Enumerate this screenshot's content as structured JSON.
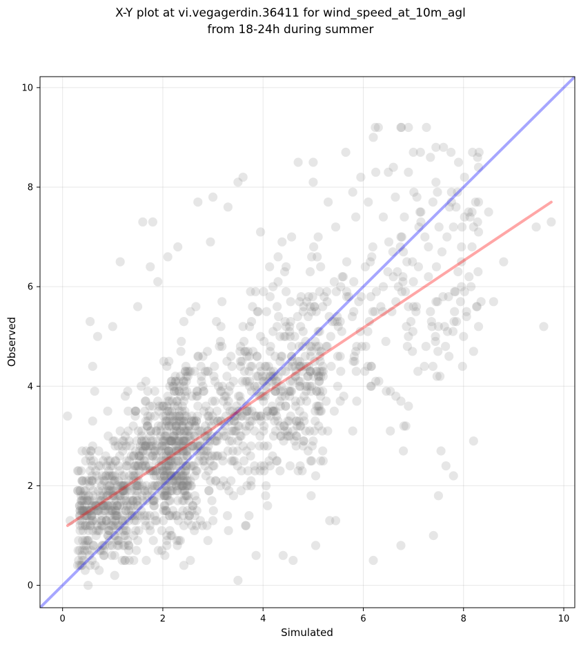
{
  "chart_data": {
    "type": "scatter",
    "title_lines": [
      "X-Y plot at vi.vegagerdin.36411 for wind_speed_at_10m_agl",
      "from 18-24h during summer"
    ],
    "xlabel": "Simulated",
    "ylabel": "Observed",
    "xlim": [
      -0.45,
      10.22
    ],
    "ylim": [
      -0.45,
      10.22
    ],
    "xticks": [
      0,
      2,
      4,
      6,
      8,
      10
    ],
    "yticks": [
      0,
      2,
      4,
      6,
      8,
      10
    ],
    "grid": true,
    "point_color": "#808080",
    "point_opacity": 0.2,
    "identity_line": {
      "color": "#0000ff",
      "opacity": 0.35,
      "x": [
        -0.45,
        10.22
      ],
      "y": [
        -0.45,
        10.22
      ]
    },
    "fit_line": {
      "color": "#ff0000",
      "opacity": 0.35,
      "x": [
        0.1,
        9.75
      ],
      "y": [
        1.2,
        7.7
      ]
    },
    "outliers": [
      [
        0.1,
        3.4
      ],
      [
        0.15,
        1.3
      ],
      [
        0.55,
        5.3
      ],
      [
        0.7,
        5.0
      ],
      [
        1.0,
        5.2
      ],
      [
        1.15,
        6.5
      ],
      [
        1.6,
        7.3
      ],
      [
        1.8,
        7.3
      ],
      [
        2.1,
        6.6
      ],
      [
        2.3,
        6.8
      ],
      [
        3.0,
        7.8
      ],
      [
        3.3,
        7.6
      ],
      [
        3.5,
        8.1
      ],
      [
        3.6,
        8.2
      ],
      [
        3.95,
        7.1
      ],
      [
        4.7,
        8.5
      ],
      [
        5.0,
        8.5
      ],
      [
        5.0,
        8.1
      ],
      [
        5.3,
        7.7
      ],
      [
        5.65,
        8.7
      ],
      [
        5.95,
        8.2
      ],
      [
        6.1,
        7.7
      ],
      [
        6.2,
        9.0
      ],
      [
        6.3,
        9.2
      ],
      [
        6.25,
        8.3
      ],
      [
        6.5,
        8.3
      ],
      [
        6.6,
        8.4
      ],
      [
        6.75,
        9.2
      ],
      [
        6.9,
        9.2
      ],
      [
        7.0,
        8.7
      ],
      [
        7.6,
        8.8
      ],
      [
        7.75,
        8.7
      ],
      [
        7.9,
        8.5
      ],
      [
        7.85,
        7.6
      ],
      [
        8.1,
        7.5
      ],
      [
        8.5,
        7.5
      ],
      [
        8.8,
        6.5
      ],
      [
        8.6,
        5.7
      ],
      [
        9.45,
        7.2
      ],
      [
        9.75,
        7.3
      ],
      [
        9.6,
        5.2
      ],
      [
        8.2,
        2.9
      ],
      [
        7.65,
        2.4
      ],
      [
        7.8,
        2.2
      ],
      [
        7.5,
        1.8
      ],
      [
        7.4,
        1.0
      ],
      [
        6.75,
        0.8
      ],
      [
        6.2,
        0.5
      ],
      [
        5.05,
        0.8
      ],
      [
        4.6,
        0.5
      ],
      [
        5.45,
        1.3
      ],
      [
        4.4,
        0.6
      ],
      [
        8.3,
        5.2
      ],
      [
        8.2,
        4.7
      ],
      [
        8.0,
        5.0
      ],
      [
        7.7,
        5.8
      ],
      [
        7.3,
        6.2
      ],
      [
        6.85,
        3.2
      ],
      [
        6.9,
        3.6
      ],
      [
        6.8,
        2.7
      ],
      [
        0.3,
        1.9
      ],
      [
        0.3,
        2.3
      ],
      [
        0.6,
        4.4
      ],
      [
        0.9,
        3.5
      ],
      [
        1.3,
        3.9
      ],
      [
        1.5,
        5.6
      ],
      [
        1.75,
        6.4
      ],
      [
        1.9,
        6.1
      ],
      [
        2.7,
        7.7
      ],
      [
        2.95,
        6.9
      ]
    ]
  }
}
